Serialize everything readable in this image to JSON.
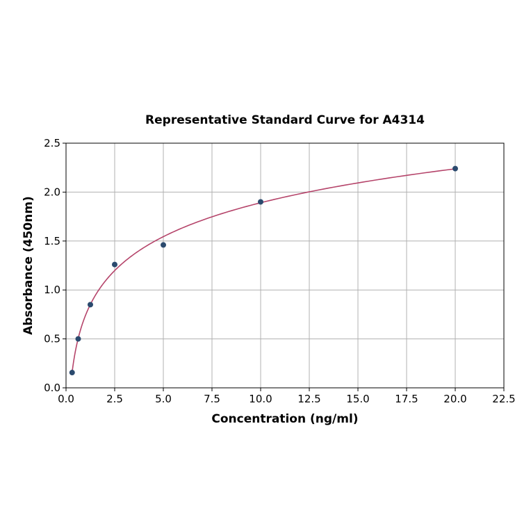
{
  "chart_data": {
    "type": "scatter",
    "title": "Representative Standard Curve for A4314",
    "xlabel": "Concentration (ng/ml)",
    "ylabel": "Absorbance (450nm)",
    "xlim": [
      0,
      22.5
    ],
    "ylim": [
      0,
      2.5
    ],
    "xticks": [
      "0.0",
      "2.5",
      "5.0",
      "7.5",
      "10.0",
      "12.5",
      "15.0",
      "17.5",
      "20.0",
      "22.5"
    ],
    "yticks": [
      "0.0",
      "0.5",
      "1.0",
      "1.5",
      "2.0",
      "2.5"
    ],
    "grid": true,
    "points": [
      {
        "x": 0.3125,
        "y": 0.156
      },
      {
        "x": 0.625,
        "y": 0.5
      },
      {
        "x": 1.25,
        "y": 0.85
      },
      {
        "x": 2.5,
        "y": 1.26
      },
      {
        "x": 5,
        "y": 1.46
      },
      {
        "x": 10,
        "y": 1.9
      },
      {
        "x": 20,
        "y": 2.24
      }
    ],
    "fit": {
      "model": "y = a + b*ln(x)",
      "a": 0.74,
      "b": 0.5,
      "xrange": [
        0.3125,
        20
      ]
    },
    "colors": {
      "points": "#2b4a6e",
      "curve": "#b5446a",
      "grid": "#b0b0b0"
    }
  }
}
